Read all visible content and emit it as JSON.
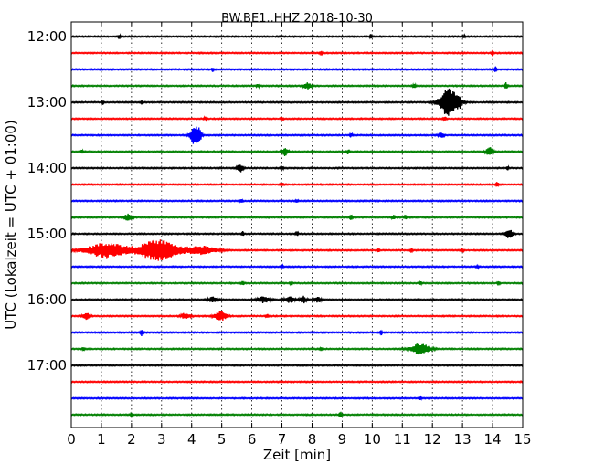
{
  "chart_data": {
    "type": "line",
    "title": "BW.BE1..HHZ 2018-10-30",
    "xlabel": "Zeit  [min]",
    "ylabel": "UTC (Lokalzeit = UTC + 01:00)",
    "xlim": [
      0,
      15
    ],
    "x_ticks": [
      0,
      1,
      2,
      3,
      4,
      5,
      6,
      7,
      8,
      9,
      10,
      11,
      12,
      13,
      14,
      15
    ],
    "grid": "vertical-dotted",
    "trace_colors": [
      "#000000",
      "#ff0000",
      "#0000ff",
      "#008000"
    ],
    "y_tick_labels": [
      "12:00",
      "13:00",
      "14:00",
      "15:00",
      "16:00",
      "17:00"
    ],
    "y_tick_rows": [
      0,
      4,
      8,
      12,
      16,
      20
    ],
    "rows": [
      {
        "time": "12:00",
        "events": [
          {
            "t": 1.6,
            "a": 0.35,
            "w": 0.03
          },
          {
            "t": 9.95,
            "a": 0.3,
            "w": 0.03
          },
          {
            "t": 13.05,
            "a": 0.2,
            "w": 0.03
          }
        ]
      },
      {
        "time": "12:15",
        "events": [
          {
            "t": 8.3,
            "a": 0.45,
            "w": 0.03
          },
          {
            "t": 14.0,
            "a": 0.4,
            "w": 0.03
          }
        ]
      },
      {
        "time": "12:30",
        "events": [
          {
            "t": 4.7,
            "a": 0.3,
            "w": 0.03
          },
          {
            "t": 14.1,
            "a": 0.4,
            "w": 0.03
          }
        ]
      },
      {
        "time": "12:45",
        "events": [
          {
            "t": 6.2,
            "a": 0.2,
            "w": 0.05
          },
          {
            "t": 7.85,
            "a": 0.45,
            "w": 0.12
          },
          {
            "t": 11.4,
            "a": 0.25,
            "w": 0.05
          },
          {
            "t": 14.45,
            "a": 0.45,
            "w": 0.04
          }
        ]
      },
      {
        "time": "13:00",
        "events": [
          {
            "t": 1.05,
            "a": 0.3,
            "w": 0.03
          },
          {
            "t": 2.35,
            "a": 0.3,
            "w": 0.03
          },
          {
            "t": 12.55,
            "a": 1.9,
            "w": 0.3
          },
          {
            "t": 12.9,
            "a": 0.4,
            "w": 0.08
          }
        ]
      },
      {
        "time": "13:15",
        "events": [
          {
            "t": 4.45,
            "a": 0.2,
            "w": 0.05
          },
          {
            "t": 7.0,
            "a": 0.2,
            "w": 0.05
          },
          {
            "t": 12.4,
            "a": 0.25,
            "w": 0.05
          }
        ]
      },
      {
        "time": "13:30",
        "events": [
          {
            "t": 4.1,
            "a": 1.3,
            "w": 0.15
          },
          {
            "t": 4.25,
            "a": 0.6,
            "w": 0.08
          },
          {
            "t": 9.3,
            "a": 0.3,
            "w": 0.04
          },
          {
            "t": 12.3,
            "a": 0.4,
            "w": 0.08
          }
        ]
      },
      {
        "time": "13:45",
        "events": [
          {
            "t": 0.35,
            "a": 0.3,
            "w": 0.04
          },
          {
            "t": 7.1,
            "a": 0.55,
            "w": 0.1
          },
          {
            "t": 9.2,
            "a": 0.35,
            "w": 0.05
          },
          {
            "t": 13.9,
            "a": 0.6,
            "w": 0.12
          }
        ]
      },
      {
        "time": "14:00",
        "events": [
          {
            "t": 5.6,
            "a": 0.55,
            "w": 0.1
          },
          {
            "t": 7.0,
            "a": 0.25,
            "w": 0.05
          },
          {
            "t": 14.5,
            "a": 0.35,
            "w": 0.03
          }
        ]
      },
      {
        "time": "14:15",
        "events": [
          {
            "t": 7.0,
            "a": 0.2,
            "w": 0.05
          },
          {
            "t": 14.15,
            "a": 0.35,
            "w": 0.04
          }
        ]
      },
      {
        "time": "14:30",
        "events": [
          {
            "t": 5.65,
            "a": 0.25,
            "w": 0.04
          },
          {
            "t": 7.5,
            "a": 0.2,
            "w": 0.04
          }
        ]
      },
      {
        "time": "14:45",
        "events": [
          {
            "t": 1.9,
            "a": 0.55,
            "w": 0.12
          },
          {
            "t": 9.3,
            "a": 0.35,
            "w": 0.04
          },
          {
            "t": 10.7,
            "a": 0.35,
            "w": 0.04
          },
          {
            "t": 11.1,
            "a": 0.25,
            "w": 0.04
          }
        ]
      },
      {
        "time": "15:00",
        "events": [
          {
            "t": 5.7,
            "a": 0.3,
            "w": 0.03
          },
          {
            "t": 7.5,
            "a": 0.25,
            "w": 0.04
          },
          {
            "t": 14.55,
            "a": 0.6,
            "w": 0.12
          }
        ]
      },
      {
        "time": "15:15",
        "events": [
          {
            "t": 1.2,
            "a": 1.0,
            "w": 0.7
          },
          {
            "t": 2.9,
            "a": 1.4,
            "w": 0.65
          },
          {
            "t": 4.3,
            "a": 0.55,
            "w": 0.5
          },
          {
            "t": 10.2,
            "a": 0.3,
            "w": 0.04
          },
          {
            "t": 11.3,
            "a": 0.3,
            "w": 0.04
          },
          {
            "t": 13.0,
            "a": 0.3,
            "w": 0.04
          }
        ]
      },
      {
        "time": "15:30",
        "events": [
          {
            "t": 7.0,
            "a": 0.15,
            "w": 0.05
          },
          {
            "t": 13.5,
            "a": 0.15,
            "w": 0.05
          }
        ]
      },
      {
        "time": "15:45",
        "events": [
          {
            "t": 5.7,
            "a": 0.3,
            "w": 0.04
          },
          {
            "t": 7.3,
            "a": 0.3,
            "w": 0.04
          },
          {
            "t": 11.6,
            "a": 0.25,
            "w": 0.04
          },
          {
            "t": 14.2,
            "a": 0.25,
            "w": 0.04
          }
        ]
      },
      {
        "time": "16:00",
        "events": [
          {
            "t": 4.7,
            "a": 0.35,
            "w": 0.15
          },
          {
            "t": 6.4,
            "a": 0.45,
            "w": 0.2
          },
          {
            "t": 7.25,
            "a": 0.4,
            "w": 0.15
          },
          {
            "t": 7.7,
            "a": 0.5,
            "w": 0.1
          },
          {
            "t": 8.2,
            "a": 0.35,
            "w": 0.1
          }
        ]
      },
      {
        "time": "16:15",
        "events": [
          {
            "t": 0.5,
            "a": 0.45,
            "w": 0.12
          },
          {
            "t": 3.8,
            "a": 0.4,
            "w": 0.15
          },
          {
            "t": 4.95,
            "a": 0.65,
            "w": 0.2
          },
          {
            "t": 6.5,
            "a": 0.25,
            "w": 0.04
          }
        ]
      },
      {
        "time": "16:30",
        "events": [
          {
            "t": 2.35,
            "a": 0.45,
            "w": 0.05
          },
          {
            "t": 10.3,
            "a": 0.3,
            "w": 0.03
          }
        ]
      },
      {
        "time": "16:45",
        "events": [
          {
            "t": 0.4,
            "a": 0.2,
            "w": 0.04
          },
          {
            "t": 8.3,
            "a": 0.2,
            "w": 0.04
          },
          {
            "t": 11.6,
            "a": 0.75,
            "w": 0.3
          }
        ]
      },
      {
        "time": "17:00",
        "events": []
      },
      {
        "time": "17:15",
        "events": []
      },
      {
        "time": "17:30",
        "events": [
          {
            "t": 11.6,
            "a": 0.2,
            "w": 0.04
          }
        ]
      },
      {
        "time": "17:45",
        "events": [
          {
            "t": 2.0,
            "a": 0.2,
            "w": 0.04
          },
          {
            "t": 8.95,
            "a": 0.55,
            "w": 0.04
          }
        ]
      }
    ]
  }
}
